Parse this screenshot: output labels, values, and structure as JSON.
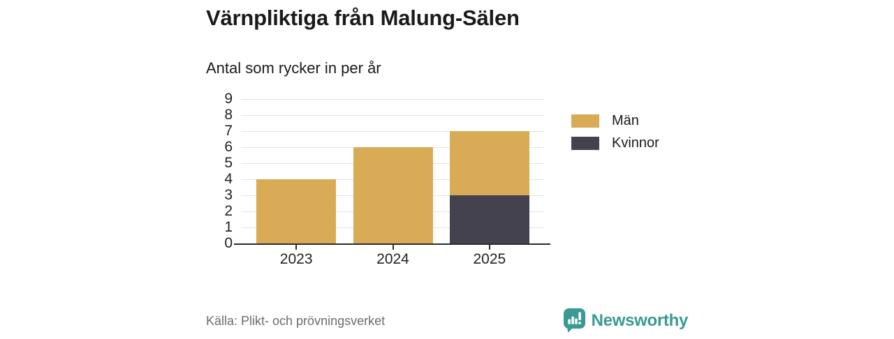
{
  "header": {
    "title": "Värnpliktiga från Malung-Sälen",
    "subtitle": "Antal som rycker in per år"
  },
  "chart_data": {
    "type": "bar",
    "stacked": true,
    "title": "Värnpliktiga från Malung-Sälen",
    "subtitle": "Antal som rycker in per år",
    "categories": [
      "2023",
      "2024",
      "2025"
    ],
    "series": [
      {
        "name": "Män",
        "color": "#d9ab57",
        "values": [
          4,
          6,
          4
        ]
      },
      {
        "name": "Kvinnor",
        "color": "#44424e",
        "values": [
          0,
          0,
          3
        ]
      }
    ],
    "totals": [
      4,
      6,
      7
    ],
    "stack_bottom_to_top": [
      "Kvinnor",
      "Män"
    ],
    "ylim": [
      0,
      9
    ],
    "ytick_step": 1,
    "xlabel": "",
    "ylabel": "",
    "grid": true,
    "legend_position": "right-of-plot"
  },
  "footer": {
    "source": "Källa: Plikt- och prövningsverket",
    "brand": "Newsworthy"
  },
  "icons": {
    "brand_icon": "newsworthy-speech-bubble-bar-chart-icon"
  },
  "colors": {
    "men": "#d9ab57",
    "women": "#44424e",
    "brand_teal": "#399a93",
    "axis": "#2b2b2b",
    "grid": "#e3e3e6",
    "text": "#1a1a1a",
    "muted": "#6b6b73"
  }
}
